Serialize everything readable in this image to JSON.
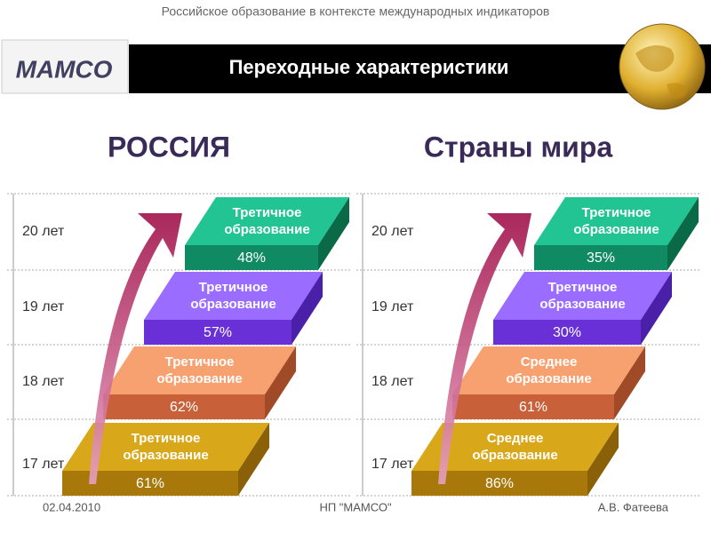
{
  "header": {
    "subtitle": "Российское образование в контексте международных индикаторов",
    "title": "Переходные характеристики",
    "logo": "MAMCO"
  },
  "panels": [
    {
      "title": "РОССИЯ",
      "steps": [
        {
          "age": "17 лет",
          "label": "Третичное образование",
          "share": "61%"
        },
        {
          "age": "18 лет",
          "label": "Третичное образование",
          "share": "62%"
        },
        {
          "age": "19 лет",
          "label": "Третичное образование",
          "share": "57%"
        },
        {
          "age": "20 лет",
          "label": "Третичное образование",
          "share": "48%"
        }
      ]
    },
    {
      "title": "Страны мира",
      "steps": [
        {
          "age": "17 лет",
          "label": "Среднее образование",
          "share": "86%"
        },
        {
          "age": "18 лет",
          "label": "Среднее образование",
          "share": "61%"
        },
        {
          "age": "19 лет",
          "label": "Третичное образование",
          "share": "30%"
        },
        {
          "age": "20 лет",
          "label": "Третичное образование",
          "share": "35%"
        }
      ]
    }
  ],
  "footer": {
    "date": "02.04.2010",
    "org": "НП \"МАМСО\"",
    "author": "А.В. Фатеева"
  }
}
